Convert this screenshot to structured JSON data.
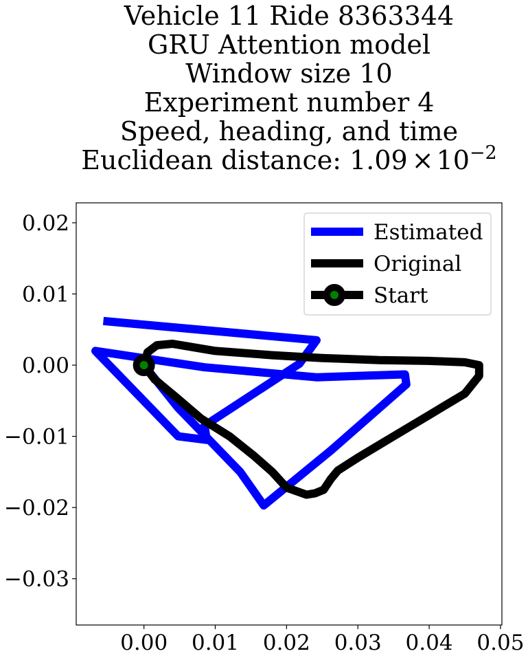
{
  "chart_data": {
    "type": "line",
    "title_lines": [
      "Vehicle 11 Ride 8363344",
      "GRU Attention model",
      "Window size 10",
      "Experiment number 4",
      "Speed, heading, and time"
    ],
    "title_last_prefix": "Euclidean distance: 1.09",
    "title_last_times": "×",
    "title_last_base": "10",
    "title_last_exp": "−2",
    "xlabel": "",
    "ylabel": "",
    "xlim": [
      -0.0095,
      0.0502
    ],
    "ylim": [
      -0.0365,
      0.0228
    ],
    "xticks": [
      0.0,
      0.01,
      0.02,
      0.03,
      0.04,
      0.05
    ],
    "xtick_labels": [
      "0.00",
      "0.01",
      "0.02",
      "0.03",
      "0.04",
      "0.05"
    ],
    "yticks": [
      0.02,
      0.01,
      0.0,
      -0.01,
      -0.02,
      -0.03
    ],
    "ytick_labels": [
      "0.02",
      "0.01",
      "0.00",
      "−0.01",
      "−0.02",
      "−0.03"
    ],
    "grid": false,
    "legend_position": "upper right",
    "legend": [
      "Estimated",
      "Original",
      "Start"
    ],
    "series": [
      {
        "name": "Estimated",
        "color": "#0000ff",
        "points": [
          [
            -0.0057,
            0.0062
          ],
          [
            0.0242,
            0.0035
          ],
          [
            0.0218,
            0.0002
          ],
          [
            0.0085,
            -0.0085
          ],
          [
            0.0088,
            -0.0105
          ],
          [
            0.0048,
            -0.01
          ],
          [
            -0.0068,
            0.002
          ],
          [
            0.0085,
            -0.0003
          ],
          [
            0.0242,
            -0.0017
          ],
          [
            0.0366,
            -0.0013
          ],
          [
            0.0368,
            -0.0027
          ],
          [
            0.0262,
            -0.012
          ],
          [
            0.0168,
            -0.0197
          ],
          [
            0.0135,
            -0.015
          ],
          [
            0.0048,
            -0.006
          ],
          [
            0.0,
            0.0
          ]
        ]
      },
      {
        "name": "Original",
        "color": "#000000",
        "points": [
          [
            0.0,
            0.0
          ],
          [
            0.0005,
            0.0018
          ],
          [
            0.0018,
            0.0028
          ],
          [
            0.004,
            0.003
          ],
          [
            0.01,
            0.002
          ],
          [
            0.018,
            0.0014
          ],
          [
            0.025,
            0.001
          ],
          [
            0.033,
            0.0007
          ],
          [
            0.04,
            0.0006
          ],
          [
            0.045,
            0.0004
          ],
          [
            0.047,
            0.0
          ],
          [
            0.047,
            -0.0015
          ],
          [
            0.045,
            -0.004
          ],
          [
            0.04,
            -0.007
          ],
          [
            0.035,
            -0.01
          ],
          [
            0.03,
            -0.013
          ],
          [
            0.0272,
            -0.0148
          ],
          [
            0.0262,
            -0.016
          ],
          [
            0.0252,
            -0.0175
          ],
          [
            0.024,
            -0.018
          ],
          [
            0.0228,
            -0.0182
          ],
          [
            0.02,
            -0.0172
          ],
          [
            0.018,
            -0.015
          ],
          [
            0.0155,
            -0.0128
          ],
          [
            0.012,
            -0.01
          ],
          [
            0.008,
            -0.0075
          ],
          [
            0.0045,
            -0.0045
          ],
          [
            0.0015,
            -0.002
          ],
          [
            0.0,
            0.0
          ]
        ]
      }
    ],
    "start": {
      "name": "Start",
      "x": 0.0,
      "y": 0.0,
      "fill": "#008000",
      "edge": "#000000"
    }
  }
}
